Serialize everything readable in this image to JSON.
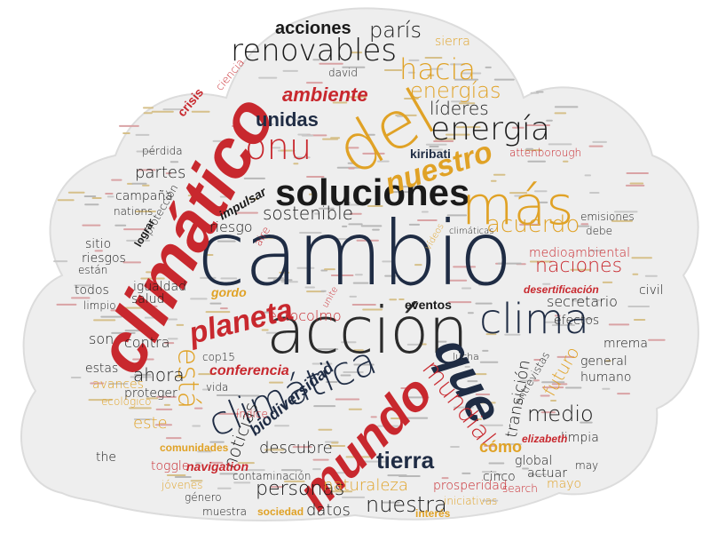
{
  "colors": {
    "navy": "#1f2c44",
    "red": "#c8282e",
    "gold": "#e0a226",
    "gray": "#7a7a7a",
    "dark": "#2b2b2b",
    "cloud_bg": "#eeeeee"
  },
  "words": {
    "cambio": "cambio",
    "accion": "acción",
    "climatico": "climático",
    "del": "del",
    "soluciones": "soluciones",
    "mas": "más",
    "mundo": "mundo",
    "que": "que",
    "climatica": "climática",
    "clima": "clima",
    "energia": "energía",
    "nuestro": "nuestro",
    "renovables": "renovables",
    "hacia": "hacia",
    "energias": "energías",
    "onu": "onu",
    "planeta": "planeta",
    "acuerdo": "acuerdo",
    "naciones": "naciones",
    "tierra": "tierra",
    "mundial": "mundial",
    "nuestra": "nuestra",
    "medio": "medio",
    "esta": "está",
    "sostenible": "sostenible",
    "acciones": "acciones",
    "paris": "parís",
    "ambiente": "ambiente",
    "lideres": "líderes",
    "unidas": "unidas",
    "kiribati": "kiribati",
    "estocolmo": "estocolmo",
    "eventos": "eventos",
    "biodiversidad": "biodiversidad",
    "futuro": "futuro",
    "transicion": "transición",
    "descubre": "descubre",
    "noticias": "noticias",
    "personas": "personas",
    "naturaleza": "naturaleza",
    "datos": "datos",
    "como": "cómo",
    "conferencia": "conferencia",
    "ahora": "ahora",
    "este": "este",
    "contra": "contra",
    "son": "son",
    "partes": "partes",
    "riesgo": "riesgo",
    "impulsar": "impulsar",
    "medioambiental": "medioambiental",
    "desertificacion": "desertificación",
    "secretario": "secretario",
    "efectos": "efectos",
    "crisis": "crisis",
    "ciencia": "ciencia",
    "sierra": "sierra",
    "david": "david",
    "attenborough": "attenborough",
    "emisiones": "emisiones",
    "cinco": "cinco",
    "global": "global",
    "actuar": "actuar",
    "limpia": "limpia",
    "general": "general",
    "humano": "humano",
    "mrema": "mrema",
    "proteger": "proteger",
    "avances": "avances",
    "todos": "todos",
    "limpio": "limpio",
    "igualdad": "igualdad",
    "salud": "salud",
    "estas": "estas",
    "ecologico": "ecológico",
    "nations": "nations",
    "campana": "campaña",
    "proteccion": "protección",
    "sitio": "sitio",
    "riesgos": "riesgos",
    "estan": "están",
    "perdida": "pérdida",
    "gordo": "gordo",
    "cop15": "cop15",
    "vida": "vida",
    "indice": "índice",
    "comunidades": "comunidades",
    "toggle": "toggle",
    "navigation": "navigation",
    "the": "the",
    "jovenes": "jóvenes",
    "genero": "género",
    "contaminacion": "contaminación",
    "muestra": "muestra",
    "sociedad": "sociedad",
    "interes": "interés",
    "prosperidad": "prosperidad",
    "search": "search",
    "mayo": "mayo",
    "iniciativas": "iniciativas",
    "elizabeth": "elizabeth",
    "debe": "debe",
    "climaticas": "climáticas",
    "videos": "vídeos",
    "civil": "civil",
    "may": "may",
    "entrevistas": "entrevistas",
    "lucha": "lucha",
    "unite": "unite",
    "aire": "aire",
    "lograr": "lograr"
  }
}
